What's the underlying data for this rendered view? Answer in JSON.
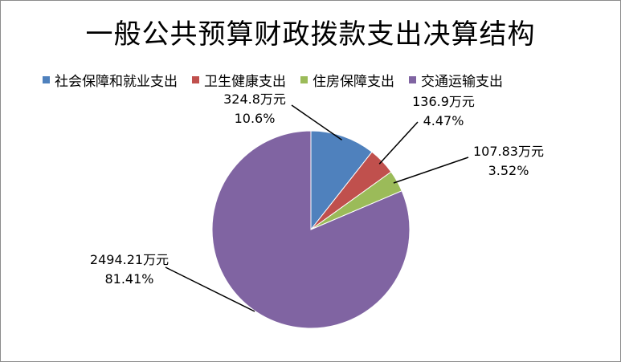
{
  "chart_data": {
    "type": "pie",
    "title": "一般公共预算财政拨款支出决算结构",
    "legend_position": "top",
    "categories": [
      "社会保障和就业支出",
      "卫生健康支出",
      "住房保障支出",
      "交通运输支出"
    ],
    "values": [
      324.8,
      136.9,
      107.83,
      2494.21
    ],
    "percent": [
      10.6,
      4.47,
      3.52,
      81.41
    ],
    "value_labels": [
      "324.8万元",
      "136.9万元",
      "107.83万元",
      "2494.21万元"
    ],
    "percent_labels": [
      "10.6%",
      "4.47%",
      "3.52%",
      "81.41%"
    ],
    "colors": [
      "#4f81bd",
      "#c0504d",
      "#9bbb59",
      "#8064a2"
    ]
  }
}
